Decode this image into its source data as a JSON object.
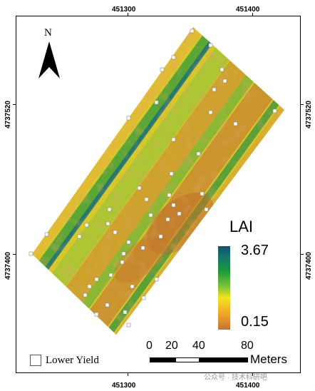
{
  "map": {
    "x_ticks": [
      "451300",
      "451400"
    ],
    "y_ticks": [
      "4737520",
      "4737400"
    ]
  },
  "north": {
    "label": "N",
    "icon": "north-arrow-icon"
  },
  "legend": {
    "title": "LAI",
    "max": "3.67",
    "min": "0.15",
    "ramp_colors": [
      "#1a4e6e",
      "#17726f",
      "#1a9a3a",
      "#7bc23a",
      "#f2e41e",
      "#f0a92a",
      "#c8722d"
    ]
  },
  "scale_bar": {
    "ticks": [
      "0",
      "20",
      "40",
      "80"
    ],
    "unit": "Meters"
  },
  "lower_yield": {
    "label": "Lower Yield",
    "icon": "white-square-icon"
  },
  "watermark": "公众号 · 技术科研吧"
}
